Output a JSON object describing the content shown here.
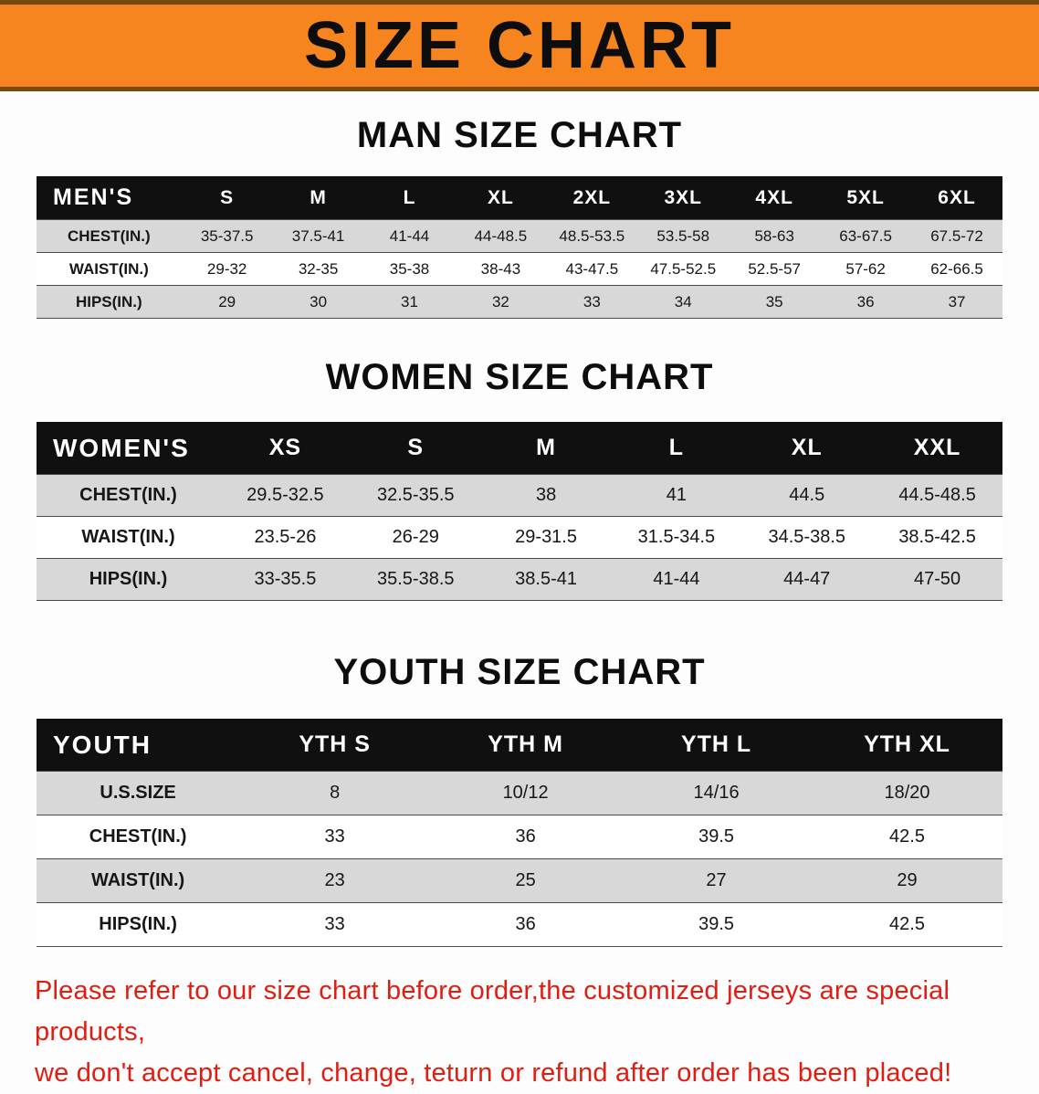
{
  "banner": {
    "title": "SIZE CHART"
  },
  "colors": {
    "banner_bg": "#f6851f",
    "banner_edge": "#7a480f",
    "header_bg": "#101010",
    "row_alt": "#d8d8d8",
    "footer_red": "#e11d12"
  },
  "men": {
    "heading": "MAN SIZE CHART",
    "header": [
      "MEN'S",
      "S",
      "M",
      "L",
      "XL",
      "2XL",
      "3XL",
      "4XL",
      "5XL",
      "6XL"
    ],
    "rows": [
      [
        "CHEST(IN.)",
        "35-37.5",
        "37.5-41",
        "41-44",
        "44-48.5",
        "48.5-53.5",
        "53.5-58",
        "58-63",
        "63-67.5",
        "67.5-72"
      ],
      [
        "WAIST(IN.)",
        "29-32",
        "32-35",
        "35-38",
        "38-43",
        "43-47.5",
        "47.5-52.5",
        "52.5-57",
        "57-62",
        "62-66.5"
      ],
      [
        "HIPS(IN.)",
        "29",
        "30",
        "31",
        "32",
        "33",
        "34",
        "35",
        "36",
        "37"
      ]
    ]
  },
  "women": {
    "heading": "WOMEN SIZE CHART",
    "header": [
      "WOMEN'S",
      "XS",
      "S",
      "M",
      "L",
      "XL",
      "XXL"
    ],
    "rows": [
      [
        "CHEST(IN.)",
        "29.5-32.5",
        "32.5-35.5",
        "38",
        "41",
        "44.5",
        "44.5-48.5"
      ],
      [
        "WAIST(IN.)",
        "23.5-26",
        "26-29",
        "29-31.5",
        "31.5-34.5",
        "34.5-38.5",
        "38.5-42.5"
      ],
      [
        "HIPS(IN.)",
        "33-35.5",
        "35.5-38.5",
        "38.5-41",
        "41-44",
        "44-47",
        "47-50"
      ]
    ]
  },
  "youth": {
    "heading": "YOUTH SIZE CHART",
    "header": [
      "YOUTH",
      "YTH S",
      "YTH M",
      "YTH L",
      "YTH XL"
    ],
    "rows": [
      [
        "U.S.SIZE",
        "8",
        "10/12",
        "14/16",
        "18/20"
      ],
      [
        "CHEST(IN.)",
        "33",
        "36",
        "39.5",
        "42.5"
      ],
      [
        "WAIST(IN.)",
        "23",
        "25",
        "27",
        "29"
      ],
      [
        "HIPS(IN.)",
        "33",
        "36",
        "39.5",
        "42.5"
      ]
    ]
  },
  "footer": {
    "line1": "Please refer to our size chart before order,the customized jerseys are special products,",
    "line2": "we don't accept cancel, change, teturn or refund after order has been placed!"
  }
}
